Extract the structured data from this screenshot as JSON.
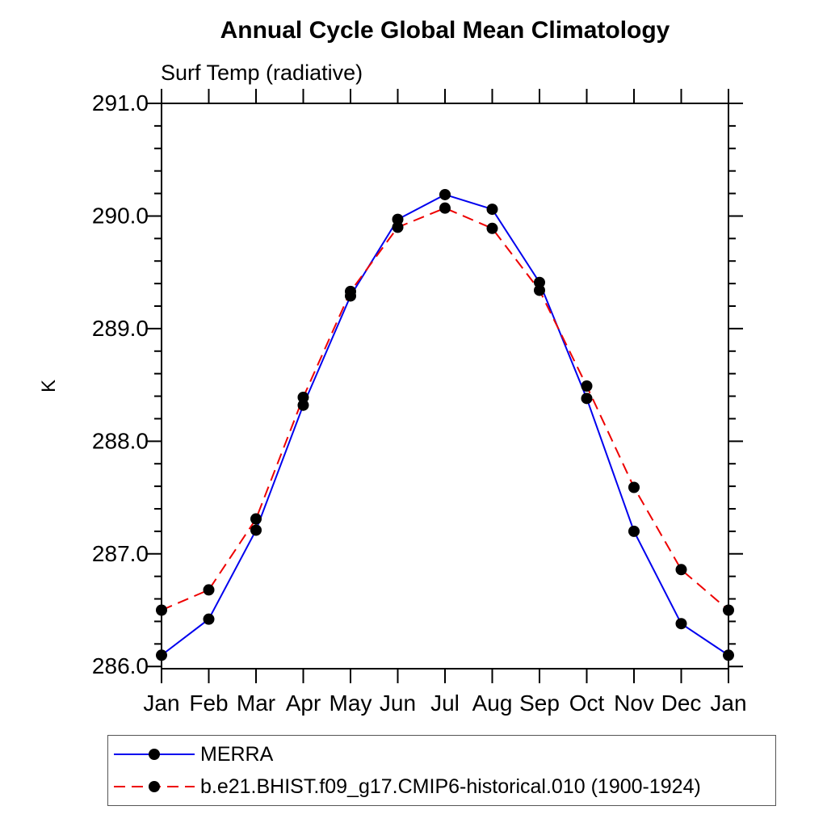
{
  "chart_data": {
    "type": "line",
    "title": "Annual Cycle Global Mean Climatology",
    "subtitle": "Surf Temp (radiative)",
    "ylabel": "K",
    "xlabel": "",
    "categories": [
      "Jan",
      "Feb",
      "Mar",
      "Apr",
      "May",
      "Jun",
      "Jul",
      "Aug",
      "Sep",
      "Oct",
      "Nov",
      "Dec",
      "Jan"
    ],
    "y_ticks": [
      286.0,
      287.0,
      288.0,
      289.0,
      290.0,
      291.0
    ],
    "y_tick_labels": [
      "286.0",
      "287.0",
      "288.0",
      "289.0",
      "290.0",
      "291.0"
    ],
    "y_minor_tick_interval": 0.2,
    "ylim": [
      285.98,
      291.0
    ],
    "grid": false,
    "legend_position": "bottom-left",
    "axis_color": "#000000",
    "background_color": "#ffffff",
    "series": [
      {
        "name": "MERRA",
        "color": "#0000ee",
        "line_style": "solid",
        "marker": "filled-circle",
        "marker_color": "#000000",
        "values": [
          286.1,
          286.42,
          287.21,
          288.32,
          289.29,
          289.97,
          290.19,
          290.06,
          289.41,
          288.38,
          287.2,
          286.38,
          286.1
        ]
      },
      {
        "name": "b.e21.BHIST.f09_g17.CMIP6-historical.010 (1900-1924)",
        "color": "#ee0000",
        "line_style": "dashed",
        "marker": "filled-circle",
        "marker_color": "#000000",
        "values": [
          286.5,
          286.68,
          287.31,
          288.39,
          289.33,
          289.9,
          290.07,
          289.89,
          289.34,
          288.49,
          287.59,
          286.86,
          286.5
        ]
      }
    ]
  }
}
